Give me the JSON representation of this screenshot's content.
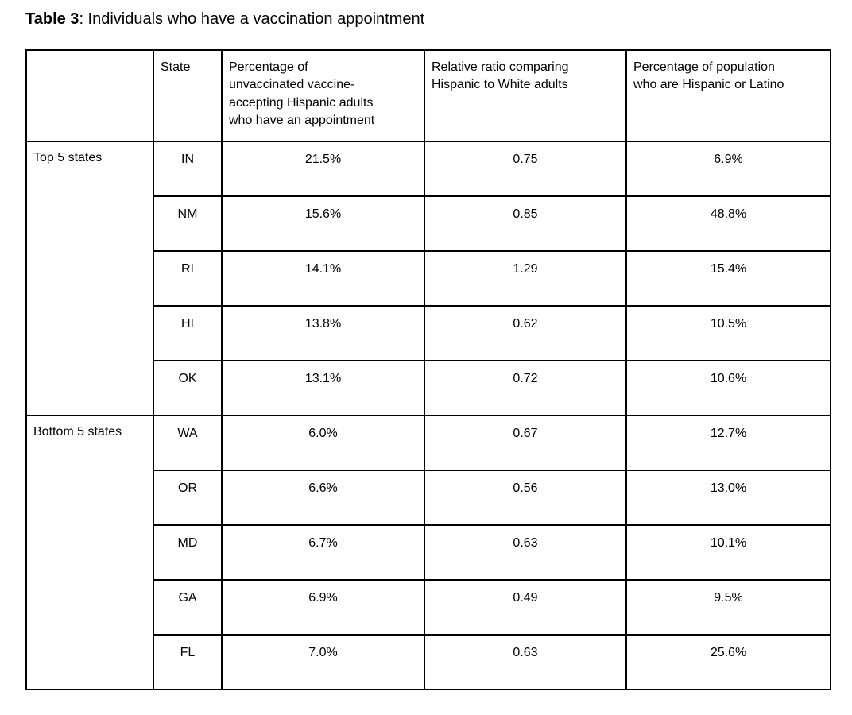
{
  "page": {
    "background": "#ffffff",
    "text_color": "#000000",
    "border_color": "#000000"
  },
  "title": {
    "label": "Table 3",
    "text": ": Individuals who have a vaccination appointment"
  },
  "table": {
    "headers": [
      "",
      "State",
      "Percentage of\nunvaccinated vaccine-\naccepting Hispanic adults\nwho have an appointment",
      "Relative ratio comparing\nHispanic to White adults",
      "Percentage of population\nwho are Hispanic or Latino"
    ],
    "groups": [
      {
        "label": "Top 5 states",
        "rows": [
          {
            "state": "IN",
            "pct_appointment": "21.5%",
            "relative_ratio": "0.75",
            "pct_hispanic_population": "6.9%"
          },
          {
            "state": "NM",
            "pct_appointment": "15.6%",
            "relative_ratio": "0.85",
            "pct_hispanic_population": "48.8%"
          },
          {
            "state": "RI",
            "pct_appointment": "14.1%",
            "relative_ratio": "1.29",
            "pct_hispanic_population": "15.4%"
          },
          {
            "state": "HI",
            "pct_appointment": "13.8%",
            "relative_ratio": "0.62",
            "pct_hispanic_population": "10.5%"
          },
          {
            "state": "OK",
            "pct_appointment": "13.1%",
            "relative_ratio": "0.72",
            "pct_hispanic_population": "10.6%"
          }
        ]
      },
      {
        "label": "Bottom 5 states",
        "rows": [
          {
            "state": "WA",
            "pct_appointment": "6.0%",
            "relative_ratio": "0.67",
            "pct_hispanic_population": "12.7%"
          },
          {
            "state": "OR",
            "pct_appointment": "6.6%",
            "relative_ratio": "0.56",
            "pct_hispanic_population": "13.0%"
          },
          {
            "state": "MD",
            "pct_appointment": "6.7%",
            "relative_ratio": "0.63",
            "pct_hispanic_population": "10.1%"
          },
          {
            "state": "GA",
            "pct_appointment": "6.9%",
            "relative_ratio": "0.49",
            "pct_hispanic_population": "9.5%"
          },
          {
            "state": "FL",
            "pct_appointment": "7.0%",
            "relative_ratio": "0.63",
            "pct_hispanic_population": "25.6%"
          }
        ]
      }
    ]
  }
}
